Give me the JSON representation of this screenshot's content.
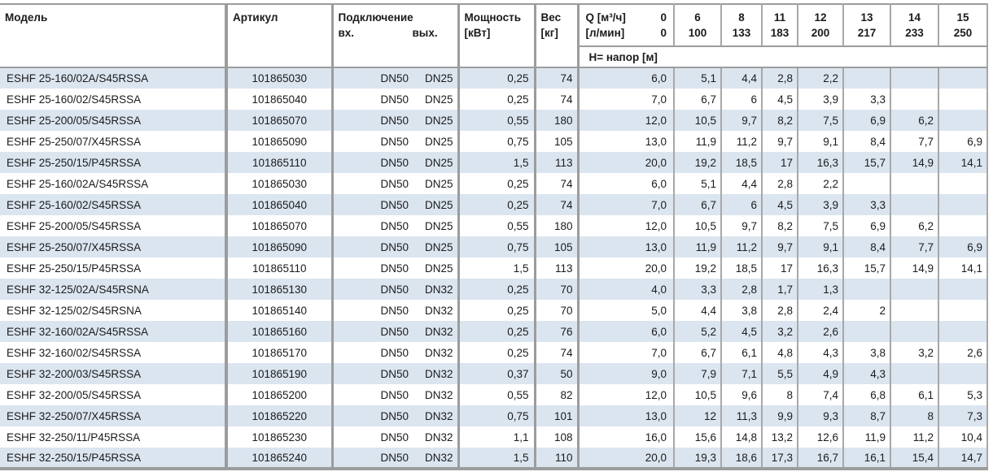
{
  "colors": {
    "row_stripe": "#dbe5f0",
    "rule_major": "#9c9c9c",
    "rule_minor": "#a8a8a8",
    "text": "#1b1b1b"
  },
  "header": {
    "model": "Модель",
    "article": "Артикул",
    "connection": "Подключение",
    "conn_in": "вх.",
    "conn_out": "вых.",
    "power_line1": "Мощность",
    "power_line2": "[кВт]",
    "weight_line1": "Вес",
    "weight_line2": "[кг]",
    "q_row1_label": "Q [м³/ч]",
    "q_row1_value": "0",
    "q_row2_label": "[л/мин]",
    "q_row2_value": "0",
    "q_cols": [
      {
        "m3h": "6",
        "lmin": "100"
      },
      {
        "m3h": "8",
        "lmin": "133"
      },
      {
        "m3h": "11",
        "lmin": "183"
      },
      {
        "m3h": "12",
        "lmin": "200"
      },
      {
        "m3h": "13",
        "lmin": "217"
      },
      {
        "m3h": "14",
        "lmin": "233"
      },
      {
        "m3h": "15",
        "lmin": "250"
      }
    ],
    "head_label": "Н= напор [м]"
  },
  "table": {
    "rows": [
      [
        "ESHF 25-160/02A/S45RSSA",
        "101865030",
        "DN50",
        "DN25",
        "0,25",
        "74",
        "6,0",
        "5,1",
        "4,4",
        "2,8",
        "2,2",
        "",
        "",
        ""
      ],
      [
        "ESHF 25-160/02/S45RSSA",
        "101865040",
        "DN50",
        "DN25",
        "0,25",
        "74",
        "7,0",
        "6,7",
        "6",
        "4,5",
        "3,9",
        "3,3",
        "",
        ""
      ],
      [
        "ESHF 25-200/05/S45RSSA",
        "101865070",
        "DN50",
        "DN25",
        "0,55",
        "180",
        "12,0",
        "10,5",
        "9,7",
        "8,2",
        "7,5",
        "6,9",
        "6,2",
        ""
      ],
      [
        "ESHF 25-250/07/X45RSSA",
        "101865090",
        "DN50",
        "DN25",
        "0,75",
        "105",
        "13,0",
        "11,9",
        "11,2",
        "9,7",
        "9,1",
        "8,4",
        "7,7",
        "6,9"
      ],
      [
        "ESHF 25-250/15/P45RSSA",
        "101865110",
        "DN50",
        "DN25",
        "1,5",
        "113",
        "20,0",
        "19,2",
        "18,5",
        "17",
        "16,3",
        "15,7",
        "14,9",
        "14,1"
      ],
      [
        "ESHF 25-160/02A/S45RSSA",
        "101865030",
        "DN50",
        "DN25",
        "0,25",
        "74",
        "6,0",
        "5,1",
        "4,4",
        "2,8",
        "2,2",
        "",
        "",
        ""
      ],
      [
        "ESHF 25-160/02/S45RSSA",
        "101865040",
        "DN50",
        "DN25",
        "0,25",
        "74",
        "7,0",
        "6,7",
        "6",
        "4,5",
        "3,9",
        "3,3",
        "",
        ""
      ],
      [
        "ESHF 25-200/05/S45RSSA",
        "101865070",
        "DN50",
        "DN25",
        "0,55",
        "180",
        "12,0",
        "10,5",
        "9,7",
        "8,2",
        "7,5",
        "6,9",
        "6,2",
        ""
      ],
      [
        "ESHF 25-250/07/X45RSSA",
        "101865090",
        "DN50",
        "DN25",
        "0,75",
        "105",
        "13,0",
        "11,9",
        "11,2",
        "9,7",
        "9,1",
        "8,4",
        "7,7",
        "6,9"
      ],
      [
        "ESHF 25-250/15/P45RSSA",
        "101865110",
        "DN50",
        "DN25",
        "1,5",
        "113",
        "20,0",
        "19,2",
        "18,5",
        "17",
        "16,3",
        "15,7",
        "14,9",
        "14,1"
      ],
      [
        "ESHF 32-125/02A/S45RSNA",
        "101865130",
        "DN50",
        "DN32",
        "0,25",
        "70",
        "4,0",
        "3,3",
        "2,8",
        "1,7",
        "1,3",
        "",
        "",
        ""
      ],
      [
        "ESHF 32-125/02/S45RSNA",
        "101865140",
        "DN50",
        "DN32",
        "0,25",
        "70",
        "5,0",
        "4,4",
        "3,8",
        "2,8",
        "2,4",
        "2",
        "",
        ""
      ],
      [
        "ESHF 32-160/02A/S45RSSA",
        "101865160",
        "DN50",
        "DN32",
        "0,25",
        "76",
        "6,0",
        "5,2",
        "4,5",
        "3,2",
        "2,6",
        "",
        "",
        ""
      ],
      [
        "ESHF 32-160/02/S45RSSA",
        "101865170",
        "DN50",
        "DN32",
        "0,25",
        "74",
        "7,0",
        "6,7",
        "6,1",
        "4,8",
        "4,3",
        "3,8",
        "3,2",
        "2,6"
      ],
      [
        "ESHF 32-200/03/S45RSSA",
        "101865190",
        "DN50",
        "DN32",
        "0,37",
        "50",
        "9,0",
        "7,9",
        "7,1",
        "5,5",
        "4,9",
        "4,3",
        "",
        ""
      ],
      [
        "ESHF 32-200/05/S45RSSA",
        "101865200",
        "DN50",
        "DN32",
        "0,55",
        "82",
        "12,0",
        "10,5",
        "9,6",
        "8",
        "7,4",
        "6,8",
        "6,1",
        "5,3"
      ],
      [
        "ESHF 32-250/07/X45RSSA",
        "101865220",
        "DN50",
        "DN32",
        "0,75",
        "101",
        "13,0",
        "12",
        "11,3",
        "9,9",
        "9,3",
        "8,7",
        "8",
        "7,3"
      ],
      [
        "ESHF 32-250/11/P45RSSA",
        "101865230",
        "DN50",
        "DN32",
        "1,1",
        "108",
        "16,0",
        "15,6",
        "14,8",
        "13,2",
        "12,6",
        "11,9",
        "11,2",
        "10,4"
      ],
      [
        "ESHF 32-250/15/P45RSSA",
        "101865240",
        "DN50",
        "DN32",
        "1,5",
        "110",
        "20,0",
        "19,3",
        "18,6",
        "17,3",
        "16,7",
        "16,1",
        "15,4",
        "14,7"
      ]
    ]
  }
}
